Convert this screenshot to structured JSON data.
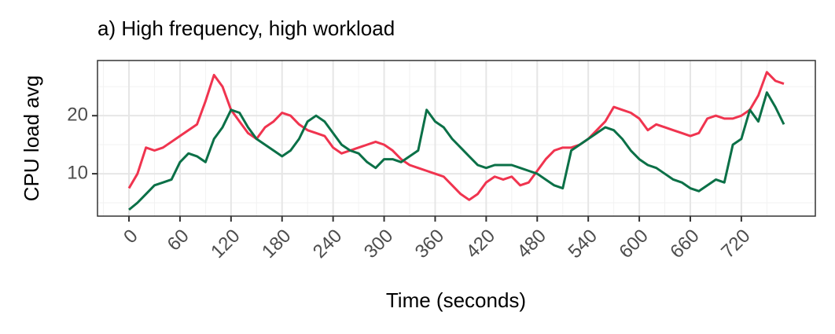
{
  "chart_data": {
    "type": "line",
    "title": "a) High frequency, high workload",
    "x_label": "Time (seconds)",
    "y_label": "CPU load avg",
    "x": [
      0,
      10,
      20,
      30,
      40,
      50,
      60,
      70,
      80,
      90,
      100,
      110,
      120,
      130,
      140,
      150,
      160,
      170,
      180,
      190,
      200,
      210,
      220,
      230,
      240,
      250,
      260,
      270,
      280,
      290,
      300,
      310,
      320,
      330,
      340,
      350,
      360,
      370,
      380,
      390,
      400,
      410,
      420,
      430,
      440,
      450,
      460,
      470,
      480,
      490,
      500,
      510,
      520,
      530,
      540,
      550,
      560,
      570,
      580,
      590,
      600,
      610,
      620,
      630,
      640,
      650,
      660,
      670,
      680,
      690,
      700,
      710,
      720,
      730,
      740,
      750,
      760,
      770
    ],
    "series": [
      {
        "color": "#f0344f",
        "values": [
          7.5,
          10,
          14.5,
          14,
          14.5,
          15.5,
          16.5,
          17.5,
          18.5,
          22.5,
          27,
          25,
          21,
          19,
          17,
          16,
          18,
          19,
          20.5,
          20,
          18.5,
          17.5,
          17,
          16.5,
          14.5,
          13.5,
          14,
          14.5,
          15,
          15.5,
          15,
          14,
          12.5,
          11.5,
          11,
          10.5,
          10,
          9.5,
          8,
          6.5,
          5.5,
          6.5,
          8.5,
          9.5,
          9,
          9.5,
          8,
          8.5,
          10.5,
          12.5,
          14,
          14.5,
          14.5,
          15,
          16,
          17.5,
          19,
          21.5,
          21,
          20.5,
          19.5,
          17.5,
          18.5,
          18,
          17.5,
          17,
          16.5,
          17,
          19.5,
          20,
          19.5,
          19.5,
          20,
          21,
          23.5,
          27.5,
          26,
          25.5
        ]
      },
      {
        "color": "#0b7047",
        "values": [
          3.8,
          5,
          6.5,
          8,
          8.5,
          9,
          12,
          13.5,
          13,
          12,
          16,
          18,
          21,
          20.5,
          18,
          16,
          15,
          14,
          13,
          14,
          16,
          19,
          20,
          19,
          17,
          15,
          14,
          13.5,
          12,
          11,
          12.5,
          12.5,
          12,
          13,
          14,
          21,
          19,
          18,
          16,
          14.5,
          13,
          11.5,
          11,
          11.5,
          11.5,
          11.5,
          11,
          10.5,
          10,
          9,
          8,
          7.5,
          14,
          15,
          16,
          17,
          18,
          17.5,
          16,
          14,
          12.5,
          11.5,
          11,
          10,
          9,
          8.5,
          7.5,
          7,
          8,
          9,
          8.5,
          15,
          16,
          21,
          19,
          24,
          21.5,
          18.5
        ]
      }
    ],
    "xlim": [
      -37,
      807
    ],
    "xticks": [
      0,
      60,
      120,
      180,
      240,
      300,
      360,
      420,
      480,
      540,
      600,
      660,
      720
    ],
    "ylim": [
      2.7,
      29.5
    ],
    "yticks": [
      10,
      20
    ],
    "grid": true
  }
}
